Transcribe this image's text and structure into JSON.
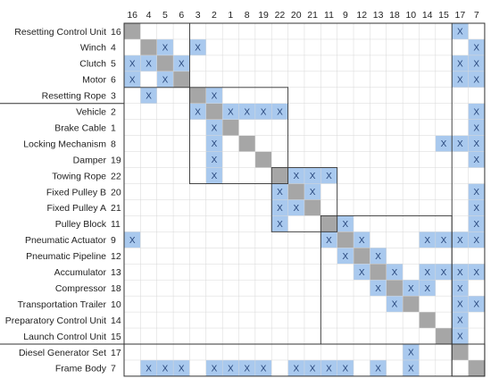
{
  "colors": {
    "mark": "#a9c9ee",
    "diagonal": "#a6a6a6",
    "mark_text": "#26457a",
    "grid": "#d7d7d7",
    "border": "#333333",
    "text": "#222222"
  },
  "matrix": {
    "columns": [
      "16",
      "4",
      "5",
      "6",
      "3",
      "2",
      "1",
      "8",
      "19",
      "22",
      "20",
      "21",
      "11",
      "9",
      "12",
      "13",
      "18",
      "10",
      "14",
      "15",
      "17",
      "7"
    ],
    "rows": [
      {
        "label": "Resetting Control Unit",
        "id": "16"
      },
      {
        "label": "Winch",
        "id": "4"
      },
      {
        "label": "Clutch",
        "id": "5"
      },
      {
        "label": "Motor",
        "id": "6"
      },
      {
        "label": "Resetting Rope",
        "id": "3"
      },
      {
        "label": "Vehicle",
        "id": "2"
      },
      {
        "label": "Brake Cable",
        "id": "1"
      },
      {
        "label": "Locking Mechanism",
        "id": "8"
      },
      {
        "label": "Damper",
        "id": "19"
      },
      {
        "label": "Towing Rope",
        "id": "22"
      },
      {
        "label": "Fixed Pulley B",
        "id": "20"
      },
      {
        "label": "Fixed Pulley A",
        "id": "21"
      },
      {
        "label": "Pulley Block",
        "id": "11"
      },
      {
        "label": "Pneumatic Actuator",
        "id": "9"
      },
      {
        "label": "Pneumatic Pipeline",
        "id": "12"
      },
      {
        "label": "Accumulator",
        "id": "13"
      },
      {
        "label": "Compressor",
        "id": "18"
      },
      {
        "label": "Transportation Trailer",
        "id": "10"
      },
      {
        "label": "Preparatory Control Unit",
        "id": "14"
      },
      {
        "label": "Launch Control Unit",
        "id": "15"
      },
      {
        "label": "Diesel Generator Set",
        "id": "17"
      },
      {
        "label": "Frame Body",
        "id": "7"
      }
    ],
    "mark_symbol": "X",
    "marks": [
      [
        0,
        20
      ],
      [
        1,
        2
      ],
      [
        1,
        4
      ],
      [
        1,
        21
      ],
      [
        2,
        0
      ],
      [
        2,
        1
      ],
      [
        2,
        3
      ],
      [
        2,
        20
      ],
      [
        2,
        21
      ],
      [
        3,
        0
      ],
      [
        3,
        2
      ],
      [
        3,
        20
      ],
      [
        3,
        21
      ],
      [
        4,
        1
      ],
      [
        4,
        5
      ],
      [
        5,
        4
      ],
      [
        5,
        6
      ],
      [
        5,
        7
      ],
      [
        5,
        8
      ],
      [
        5,
        9
      ],
      [
        5,
        21
      ],
      [
        6,
        5
      ],
      [
        6,
        21
      ],
      [
        7,
        5
      ],
      [
        7,
        19
      ],
      [
        7,
        20
      ],
      [
        7,
        21
      ],
      [
        8,
        5
      ],
      [
        8,
        21
      ],
      [
        9,
        5
      ],
      [
        9,
        10
      ],
      [
        9,
        11
      ],
      [
        9,
        12
      ],
      [
        10,
        9
      ],
      [
        10,
        11
      ],
      [
        10,
        21
      ],
      [
        11,
        9
      ],
      [
        11,
        10
      ],
      [
        11,
        21
      ],
      [
        12,
        9
      ],
      [
        12,
        13
      ],
      [
        12,
        21
      ],
      [
        13,
        0
      ],
      [
        13,
        12
      ],
      [
        13,
        14
      ],
      [
        13,
        18
      ],
      [
        13,
        19
      ],
      [
        13,
        20
      ],
      [
        13,
        21
      ],
      [
        14,
        13
      ],
      [
        14,
        15
      ],
      [
        15,
        14
      ],
      [
        15,
        16
      ],
      [
        15,
        18
      ],
      [
        15,
        19
      ],
      [
        15,
        20
      ],
      [
        15,
        21
      ],
      [
        16,
        15
      ],
      [
        16,
        17
      ],
      [
        16,
        18
      ],
      [
        16,
        20
      ],
      [
        17,
        16
      ],
      [
        17,
        20
      ],
      [
        17,
        21
      ],
      [
        18,
        20
      ],
      [
        19,
        20
      ],
      [
        20,
        17
      ],
      [
        21,
        1
      ],
      [
        21,
        2
      ],
      [
        21,
        3
      ],
      [
        21,
        5
      ],
      [
        21,
        6
      ],
      [
        21,
        7
      ],
      [
        21,
        8
      ],
      [
        21,
        10
      ],
      [
        21,
        11
      ],
      [
        21,
        12
      ],
      [
        21,
        13
      ],
      [
        21,
        15
      ],
      [
        21,
        17
      ]
    ],
    "blocks": [
      [
        0,
        3
      ],
      [
        4,
        9
      ],
      [
        9,
        12
      ],
      [
        12,
        19
      ],
      [
        20,
        21
      ]
    ]
  }
}
